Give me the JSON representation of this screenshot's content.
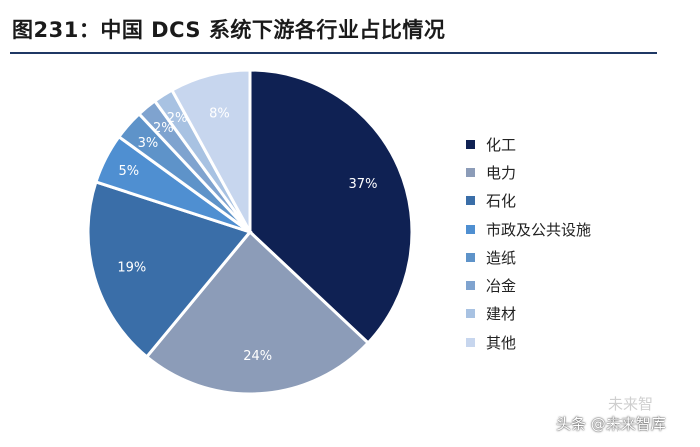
{
  "title": "图231：中国 DCS 系统下游各行业占比情况",
  "chart_data": {
    "type": "pie",
    "title": "图231：中国 DCS 系统下游各行业占比情况",
    "categories": [
      "化工",
      "电力",
      "石化",
      "市政及公共设施",
      "造纸",
      "冶金",
      "建材",
      "其他"
    ],
    "values": [
      37,
      24,
      19,
      5,
      3,
      2,
      2,
      8
    ],
    "data_labels": [
      "37%",
      "24%",
      "19%",
      "5%",
      "3%",
      "2%",
      "2%",
      "8%"
    ],
    "colors": [
      "#0f2153",
      "#8c9cb8",
      "#3a6ea8",
      "#4f8fd1",
      "#5e93c9",
      "#7fa3cf",
      "#a8c2e2",
      "#c7d6ee"
    ],
    "label_colors": [
      "#ffffff",
      "#ffffff",
      "#ffffff",
      "#ffffff",
      "#ffffff",
      "#ffffff",
      "#ffffff",
      "#ffffff"
    ],
    "legend_position": "right"
  },
  "watermark": {
    "line1": "未来智库",
    "line2": "头条 @未来智库"
  }
}
